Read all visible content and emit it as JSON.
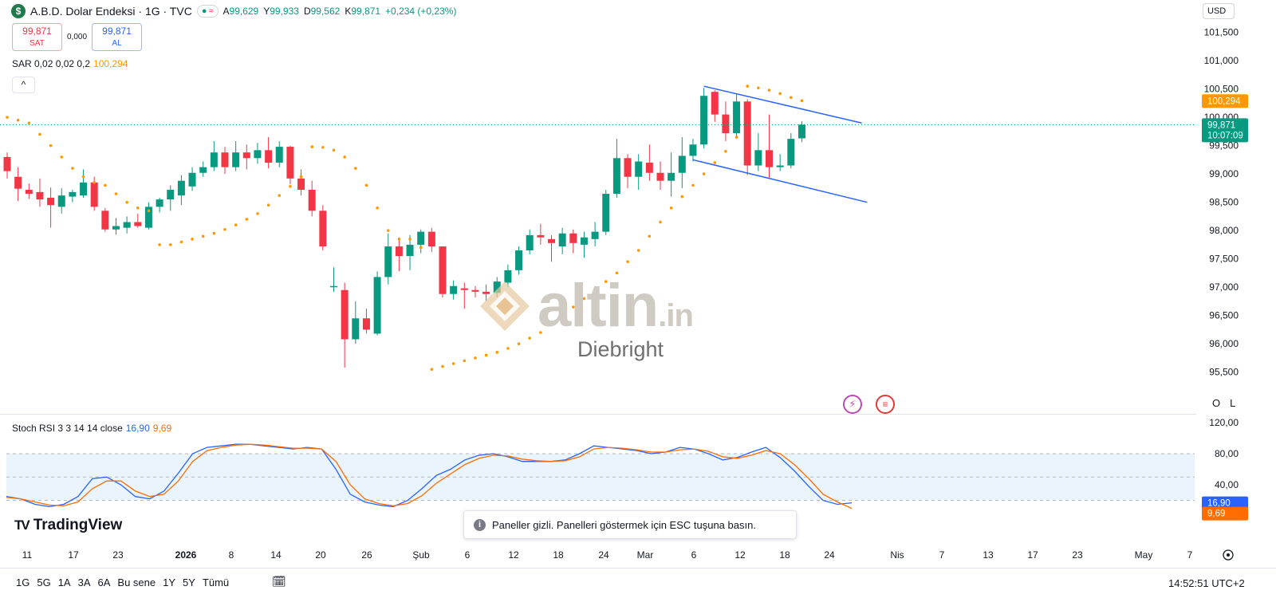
{
  "header": {
    "symbol_badge": "$",
    "title": "A.B.D. Dolar Endeksi · 1G · TVC",
    "status_dot": "●",
    "status_wave": "≈",
    "ohlc": [
      {
        "k": "A",
        "v": "99,629"
      },
      {
        "k": "Y",
        "v": "99,933"
      },
      {
        "k": "D",
        "v": "99,562"
      },
      {
        "k": "K",
        "v": "99,871"
      }
    ],
    "change": "+0,234 (+0,23%)"
  },
  "trade": {
    "sell_price": "99,871",
    "sell_label": "SAT",
    "spread": "0,000",
    "buy_price": "99,871",
    "buy_label": "AL"
  },
  "indicators": {
    "sar_label": "SAR 0,02 0,02 0,2",
    "sar_value": "100,294",
    "collapse_icon": "^",
    "stoch_label": "Stoch RSI 3 3 14 14 close",
    "stoch_k": "16,90",
    "stoch_d": "9,69"
  },
  "currency": "USD",
  "scale_buttons": {
    "o": "O",
    "l": "L"
  },
  "watermark": {
    "brand": "altin",
    "suffix": ".in",
    "author": "Diebright"
  },
  "branding": {
    "name": "TradingView",
    "mark": "TV"
  },
  "toast": {
    "icon": "i",
    "text": "Paneller gizli. Panelleri göstermek için ESC tuşuna basın."
  },
  "bottom": {
    "ranges": [
      "1G",
      "5G",
      "1A",
      "3A",
      "6A",
      "Bu sene",
      "1Y",
      "5Y",
      "Tümü"
    ],
    "calendar_icon": "📅",
    "clock": "14:52:51 UTC+2"
  },
  "colors": {
    "up": "#089981",
    "down": "#f23645",
    "sar": "#ff9800",
    "trend": "#2962ff",
    "stoch_k": "#2962ff",
    "stoch_d": "#ff6d00"
  },
  "chart_data": [
    {
      "type": "candlestick",
      "title": "A.B.D. Dolar Endeksi · 1G · TVC",
      "ylim": [
        95.2,
        101.65
      ],
      "y_ticks": [
        "95,500",
        "96,000",
        "96,500",
        "97,000",
        "97,500",
        "98,000",
        "98,500",
        "99,000",
        "99,500",
        "100,000",
        "100,500",
        "101,000",
        "101,500"
      ],
      "y_tick_values": [
        95.5,
        96,
        96.5,
        97,
        97.5,
        98,
        98.5,
        99,
        99.5,
        100,
        100.5,
        101,
        101.5
      ],
      "x_ticks": [
        "11",
        "17",
        "23",
        "2026",
        "8",
        "14",
        "20",
        "26",
        "Şub",
        "6",
        "12",
        "18",
        "24",
        "Mar",
        "6",
        "12",
        "18",
        "24",
        "Nis",
        "7",
        "13",
        "17",
        "23",
        "May",
        "7"
      ],
      "candles": [
        [
          99.3,
          99.38,
          98.92,
          99.05
        ],
        [
          98.95,
          99.12,
          98.52,
          98.74
        ],
        [
          98.72,
          98.83,
          98.56,
          98.65
        ],
        [
          98.68,
          98.92,
          98.42,
          98.55
        ],
        [
          98.58,
          98.76,
          98.05,
          98.45
        ],
        [
          98.42,
          98.75,
          98.3,
          98.62
        ],
        [
          98.6,
          98.72,
          98.5,
          98.68
        ],
        [
          98.62,
          99.08,
          98.58,
          98.85
        ],
        [
          98.85,
          98.95,
          98.35,
          98.42
        ],
        [
          98.35,
          98.4,
          97.98,
          98.02
        ],
        [
          98.02,
          98.22,
          97.93,
          98.08
        ],
        [
          98.05,
          98.25,
          97.95,
          98.15
        ],
        [
          98.15,
          98.3,
          98.05,
          98.08
        ],
        [
          98.05,
          98.5,
          98.02,
          98.42
        ],
        [
          98.42,
          98.58,
          98.32,
          98.55
        ],
        [
          98.55,
          98.8,
          98.35,
          98.72
        ],
        [
          98.62,
          98.98,
          98.45,
          98.88
        ],
        [
          98.78,
          99.12,
          98.7,
          99.02
        ],
        [
          99.02,
          99.22,
          98.95,
          99.12
        ],
        [
          99.12,
          99.58,
          99.05,
          99.38
        ],
        [
          99.38,
          99.48,
          99.0,
          99.12
        ],
        [
          99.12,
          99.58,
          99.05,
          99.38
        ],
        [
          99.38,
          99.52,
          99.08,
          99.28
        ],
        [
          99.28,
          99.55,
          99.18,
          99.42
        ],
        [
          99.42,
          99.65,
          99.1,
          99.2
        ],
        [
          99.2,
          99.58,
          99.12,
          99.48
        ],
        [
          99.48,
          99.5,
          98.82,
          98.92
        ],
        [
          98.92,
          99.08,
          98.62,
          98.72
        ],
        [
          98.72,
          98.88,
          98.25,
          98.35
        ],
        [
          98.35,
          98.45,
          97.65,
          97.72
        ],
        [
          97.02,
          97.35,
          96.92,
          97.02
        ],
        [
          96.95,
          97.08,
          95.58,
          96.08
        ],
        [
          96.08,
          96.75,
          96.0,
          96.45
        ],
        [
          96.45,
          96.62,
          96.18,
          96.25
        ],
        [
          96.18,
          97.28,
          96.15,
          97.18
        ],
        [
          97.18,
          97.95,
          97.05,
          97.72
        ],
        [
          97.72,
          97.88,
          97.28,
          97.55
        ],
        [
          97.55,
          97.92,
          97.3,
          97.75
        ],
        [
          97.75,
          98.02,
          97.6,
          97.98
        ],
        [
          97.98,
          98.05,
          97.62,
          97.72
        ],
        [
          97.72,
          97.72,
          96.82,
          96.88
        ],
        [
          96.88,
          97.12,
          96.78,
          97.02
        ],
        [
          96.98,
          97.08,
          96.62,
          96.95
        ],
        [
          96.95,
          97.02,
          96.82,
          96.92
        ],
        [
          96.92,
          97.05,
          96.75,
          96.88
        ],
        [
          96.9,
          97.18,
          96.82,
          97.1
        ],
        [
          97.08,
          97.4,
          97.0,
          97.3
        ],
        [
          97.3,
          97.72,
          97.22,
          97.65
        ],
        [
          97.65,
          98.02,
          97.58,
          97.92
        ],
        [
          97.92,
          98.12,
          97.75,
          97.88
        ],
        [
          97.85,
          97.92,
          97.45,
          97.78
        ],
        [
          97.72,
          98.05,
          97.58,
          97.95
        ],
        [
          97.95,
          98.02,
          97.6,
          97.78
        ],
        [
          97.75,
          97.98,
          97.52,
          97.88
        ],
        [
          97.85,
          98.15,
          97.72,
          97.98
        ],
        [
          97.98,
          98.72,
          97.92,
          98.65
        ],
        [
          98.65,
          99.62,
          98.58,
          99.28
        ],
        [
          99.28,
          99.35,
          98.75,
          98.95
        ],
        [
          98.95,
          99.35,
          98.72,
          99.22
        ],
        [
          99.2,
          99.52,
          98.88,
          99.02
        ],
        [
          99.02,
          99.22,
          98.72,
          98.88
        ],
        [
          98.88,
          99.38,
          98.6,
          99.02
        ],
        [
          99.02,
          99.65,
          98.75,
          99.32
        ],
        [
          99.32,
          99.62,
          99.22,
          99.52
        ],
        [
          99.52,
          100.52,
          99.45,
          100.38
        ],
        [
          100.45,
          100.48,
          99.92,
          100.05
        ],
        [
          100.05,
          100.28,
          99.58,
          99.72
        ],
        [
          99.72,
          100.42,
          99.62,
          100.28
        ],
        [
          100.28,
          100.32,
          98.98,
          99.15
        ],
        [
          99.15,
          99.72,
          99.05,
          99.42
        ],
        [
          99.42,
          100.05,
          98.92,
          99.12
        ],
        [
          99.12,
          99.35,
          99.05,
          99.15
        ],
        [
          99.15,
          99.72,
          99.1,
          99.62
        ],
        [
          99.629,
          99.933,
          99.562,
          99.871
        ]
      ]
    },
    {
      "type": "scatter",
      "title": "SAR 0,02 0,02 0,2",
      "ylim": [
        95.2,
        101.65
      ],
      "values": [
        100.0,
        99.95,
        99.9,
        99.7,
        99.5,
        99.3,
        99.1,
        98.95,
        98.85,
        98.8,
        98.65,
        98.5,
        98.4,
        98.35,
        97.75,
        97.75,
        97.8,
        97.85,
        97.9,
        97.95,
        98.02,
        98.1,
        98.2,
        98.3,
        98.45,
        98.62,
        98.78,
        98.95,
        99.48,
        99.47,
        99.42,
        99.3,
        99.1,
        98.8,
        98.4,
        98.0,
        97.85,
        97.85,
        97.7,
        95.55,
        95.6,
        95.65,
        95.7,
        95.75,
        95.8,
        95.85,
        95.92,
        96.0,
        96.1,
        96.2,
        96.35,
        96.5,
        96.65,
        96.8,
        96.95,
        97.1,
        97.25,
        97.45,
        97.65,
        97.9,
        98.15,
        98.4,
        98.6,
        98.8,
        99.0,
        99.2,
        99.4,
        99.65,
        100.55,
        100.52,
        100.48,
        100.42,
        100.35,
        100.294
      ]
    },
    {
      "type": "line",
      "title": "Trend channel",
      "ylim": [
        95.2,
        101.65
      ],
      "series": [
        {
          "x": [
            64,
            78.5
          ],
          "values": [
            100.55,
            99.9
          ]
        },
        {
          "x": [
            63,
            79
          ],
          "values": [
            99.25,
            98.5
          ]
        }
      ]
    },
    {
      "type": "line",
      "title": "Stoch RSI 3 3 14 14 close",
      "ylim": [
        -5,
        125
      ],
      "y_ticks": [
        "40,00",
        "80,00",
        "120,00"
      ],
      "y_tick_values": [
        40,
        80,
        120
      ],
      "band": [
        20,
        80
      ],
      "series": [
        {
          "name": "K",
          "values": [
            25,
            22,
            15,
            12,
            15,
            25,
            48,
            50,
            40,
            25,
            22,
            32,
            55,
            80,
            88,
            90,
            92,
            92,
            90,
            88,
            86,
            88,
            86,
            60,
            28,
            18,
            14,
            12,
            20,
            35,
            52,
            60,
            72,
            78,
            80,
            76,
            70,
            70,
            70,
            72,
            80,
            90,
            88,
            86,
            84,
            80,
            82,
            88,
            86,
            80,
            72,
            75,
            82,
            88,
            75,
            58,
            38,
            20,
            15,
            16.9
          ]
        },
        {
          "name": "D",
          "values": [
            24,
            22,
            18,
            14,
            13,
            18,
            35,
            45,
            45,
            32,
            25,
            28,
            45,
            70,
            84,
            88,
            91,
            92,
            91,
            89,
            87,
            87,
            86,
            70,
            40,
            22,
            16,
            13,
            16,
            26,
            42,
            54,
            66,
            74,
            78,
            77,
            73,
            71,
            70,
            71,
            76,
            86,
            88,
            87,
            85,
            82,
            82,
            85,
            86,
            83,
            76,
            74,
            78,
            84,
            80,
            66,
            48,
            28,
            18,
            9.69
          ]
        }
      ]
    }
  ],
  "price_labels": {
    "sar": "100,294",
    "last": "99,871",
    "countdown": "10:07:09",
    "stoch_k": "16,90",
    "stoch_d": "9,69"
  }
}
